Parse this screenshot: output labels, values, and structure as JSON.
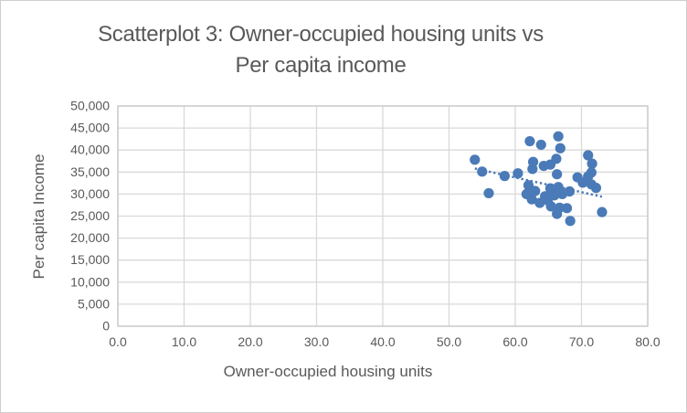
{
  "window": {
    "background": "#ffffff",
    "border_color": "#cfcfcf"
  },
  "title": {
    "line1": "Scatterplot 3: Owner-occupied housing units vs",
    "line2": "Per capita income",
    "color": "#595959"
  },
  "chart_data": {
    "type": "scatter",
    "title": "Scatterplot 3: Owner-occupied housing units vs Per capita income",
    "xlabel": "Owner-occupied housing units",
    "ylabel": "Per capita Income",
    "xlim": [
      0,
      80
    ],
    "ylim": [
      0,
      50000
    ],
    "grid": true,
    "legend": "none",
    "x_ticks": {
      "values": [
        0,
        10,
        20,
        30,
        40,
        50,
        60,
        70,
        80
      ],
      "labels": [
        "0.0",
        "10.0",
        "20.0",
        "30.0",
        "40.0",
        "50.0",
        "60.0",
        "70.0",
        "80.0"
      ]
    },
    "y_ticks": {
      "values": [
        0,
        5000,
        10000,
        15000,
        20000,
        25000,
        30000,
        35000,
        40000,
        45000,
        50000
      ],
      "labels": [
        "0",
        "5,000",
        "10,000",
        "15,000",
        "20,000",
        "25,000",
        "30,000",
        "35,000",
        "40,000",
        "45,000",
        "50,000"
      ]
    },
    "series": [
      {
        "marker": "circle",
        "marker_color": "#4a7ab7",
        "points": [
          [
            53.9,
            37800
          ],
          [
            55.0,
            35100
          ],
          [
            56.0,
            30200
          ],
          [
            58.4,
            34100
          ],
          [
            60.4,
            34700
          ],
          [
            62.2,
            42000
          ],
          [
            63.9,
            41200
          ],
          [
            66.5,
            43100
          ],
          [
            66.8,
            40400
          ],
          [
            62.7,
            37300
          ],
          [
            62.6,
            35700
          ],
          [
            64.3,
            36400
          ],
          [
            65.3,
            36700
          ],
          [
            66.2,
            38000
          ],
          [
            66.3,
            34500
          ],
          [
            71.0,
            38800
          ],
          [
            71.6,
            36900
          ],
          [
            71.5,
            34900
          ],
          [
            69.4,
            33800
          ],
          [
            71.0,
            34000
          ],
          [
            70.2,
            32600
          ],
          [
            71.5,
            32200
          ],
          [
            72.2,
            31400
          ],
          [
            62.0,
            32000
          ],
          [
            61.7,
            30000
          ],
          [
            63.0,
            30700
          ],
          [
            62.5,
            28800
          ],
          [
            63.7,
            28000
          ],
          [
            64.5,
            29500
          ],
          [
            64.9,
            28600
          ],
          [
            65.3,
            31300
          ],
          [
            66.5,
            31600
          ],
          [
            65.9,
            29700
          ],
          [
            67.1,
            30000
          ],
          [
            68.2,
            30600
          ],
          [
            65.4,
            27200
          ],
          [
            66.7,
            26900
          ],
          [
            67.8,
            26800
          ],
          [
            66.3,
            25500
          ],
          [
            68.3,
            23900
          ],
          [
            73.1,
            25900
          ]
        ]
      }
    ],
    "trendline": {
      "style": "dotted",
      "color": "#4a7ab7",
      "x1": 53.9,
      "y1": 35800,
      "x2": 73.1,
      "y2": 29400
    },
    "colors": {
      "gridline": "#d9d9d9",
      "frame": "#c6c6c6",
      "text": "#595959"
    }
  }
}
